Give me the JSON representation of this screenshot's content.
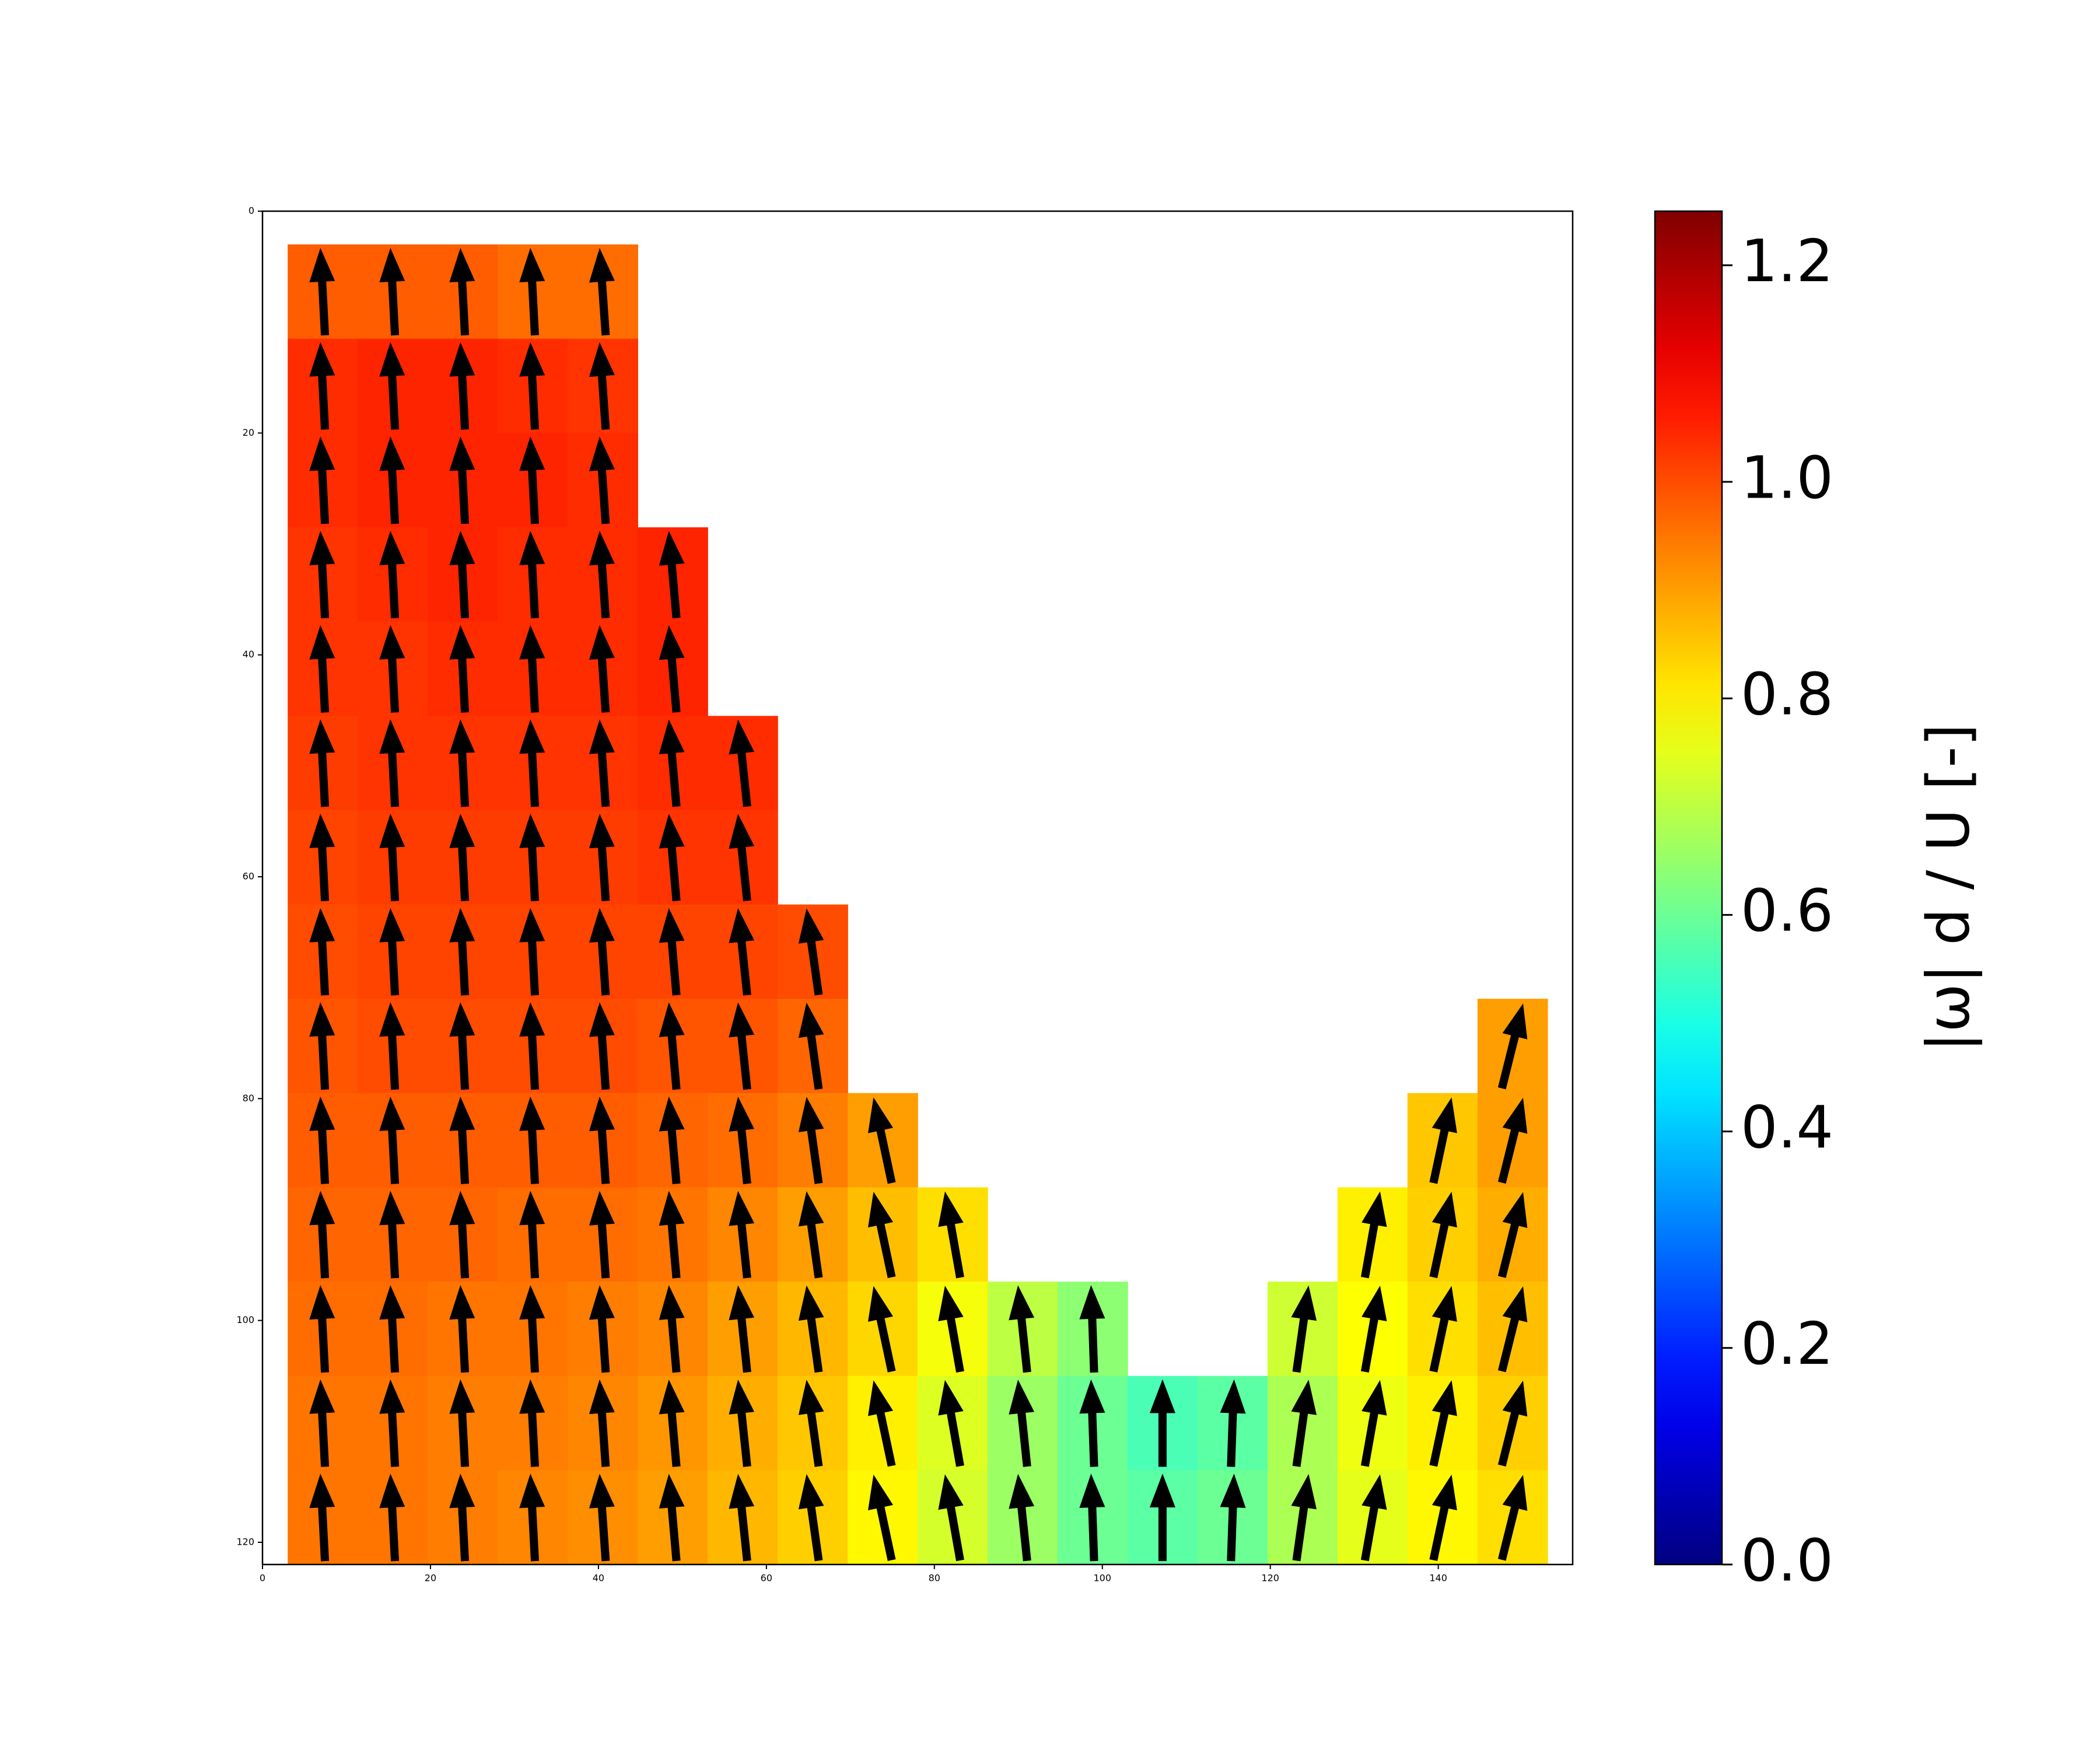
{
  "chart_data": {
    "type": "heatmap_quiver",
    "colorbar_label": "|ω| d / U [-]",
    "colormap": "jet",
    "clim": [
      0,
      1.25
    ],
    "cbticks": [
      {
        "value": 0,
        "label": "0.0"
      },
      0.2,
      0.4,
      0.6,
      0.8,
      {
        "value": 1,
        "label": "1.0"
      },
      1.2
    ],
    "xlim": [
      0,
      156
    ],
    "ylim": [
      122,
      0
    ],
    "xticks": [
      0,
      20,
      40,
      60,
      80,
      100,
      120,
      140
    ],
    "yticks": [
      0,
      20,
      40,
      60,
      80,
      100,
      120
    ],
    "x_edges": [
      3,
      11.33,
      19.67,
      28,
      36.33,
      44.67,
      53,
      61.33,
      69.67,
      78,
      86.33,
      94.67,
      103,
      111.33,
      119.67,
      128,
      136.33,
      144.67,
      153
    ],
    "y_edges": [
      3,
      11.5,
      20,
      28.5,
      37,
      45.5,
      54,
      62.5,
      71,
      79.5,
      88,
      96.5,
      105,
      113.5,
      122
    ],
    "values": [
      [
        0.98,
        0.98,
        0.98,
        0.96,
        0.96,
        null,
        null,
        null,
        null,
        null,
        null,
        null,
        null,
        null,
        null,
        null,
        null,
        null
      ],
      [
        1.04,
        1.05,
        1.05,
        1.04,
        1.03,
        null,
        null,
        null,
        null,
        null,
        null,
        null,
        null,
        null,
        null,
        null,
        null,
        null
      ],
      [
        1.04,
        1.05,
        1.05,
        1.05,
        1.04,
        null,
        null,
        null,
        null,
        null,
        null,
        null,
        null,
        null,
        null,
        null,
        null,
        null
      ],
      [
        1.03,
        1.04,
        1.05,
        1.04,
        1.04,
        1.05,
        null,
        null,
        null,
        null,
        null,
        null,
        null,
        null,
        null,
        null,
        null,
        null
      ],
      [
        1.03,
        1.03,
        1.04,
        1.04,
        1.04,
        1.05,
        null,
        null,
        null,
        null,
        null,
        null,
        null,
        null,
        null,
        null,
        null,
        null
      ],
      [
        1.02,
        1.03,
        1.03,
        1.03,
        1.03,
        1.04,
        1.04,
        null,
        null,
        null,
        null,
        null,
        null,
        null,
        null,
        null,
        null,
        null
      ],
      [
        1.01,
        1.02,
        1.02,
        1.02,
        1.02,
        1.03,
        1.03,
        null,
        null,
        null,
        null,
        null,
        null,
        null,
        null,
        null,
        null,
        null
      ],
      [
        1.0,
        1.01,
        1.01,
        1.01,
        1.01,
        1.01,
        1.01,
        1.0,
        null,
        null,
        null,
        null,
        null,
        null,
        null,
        null,
        null,
        null
      ],
      [
        0.99,
        1.0,
        1.0,
        1.0,
        1.0,
        0.99,
        0.99,
        0.97,
        null,
        null,
        null,
        null,
        null,
        null,
        null,
        null,
        null,
        0.9
      ],
      [
        0.98,
        0.98,
        0.98,
        0.98,
        0.98,
        0.97,
        0.96,
        0.94,
        0.9,
        null,
        null,
        null,
        null,
        null,
        null,
        null,
        0.85,
        0.9
      ],
      [
        0.97,
        0.97,
        0.97,
        0.96,
        0.96,
        0.95,
        0.93,
        0.9,
        0.86,
        0.82,
        null,
        null,
        null,
        null,
        null,
        0.8,
        0.84,
        0.88
      ],
      [
        0.96,
        0.96,
        0.95,
        0.95,
        0.94,
        0.93,
        0.9,
        0.87,
        0.83,
        0.77,
        0.7,
        0.64,
        null,
        null,
        0.72,
        0.78,
        0.82,
        0.86
      ],
      [
        0.95,
        0.95,
        0.94,
        0.94,
        0.93,
        0.91,
        0.88,
        0.85,
        0.8,
        0.74,
        0.66,
        0.6,
        0.56,
        0.58,
        0.68,
        0.76,
        0.8,
        0.84
      ],
      [
        0.95,
        0.95,
        0.94,
        0.93,
        0.92,
        0.9,
        0.87,
        0.84,
        0.79,
        0.73,
        0.66,
        0.6,
        0.58,
        0.6,
        0.68,
        0.75,
        0.79,
        0.82
      ]
    ],
    "arrow_angles": [
      -3,
      -3,
      -3,
      -3,
      -4,
      -5,
      -6,
      -8,
      -12,
      -10,
      -6,
      -2,
      0,
      2,
      8,
      10,
      12,
      14
    ]
  }
}
